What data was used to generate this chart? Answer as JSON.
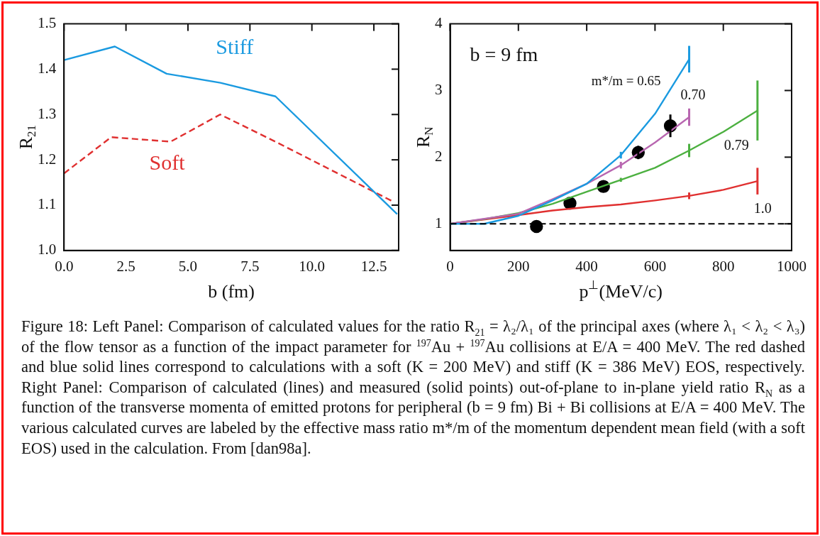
{
  "chart_data": [
    {
      "type": "line",
      "xlabel": "b (fm)",
      "ylabel": "R$_{21}$",
      "xlim": [
        0,
        13.5
      ],
      "ylim": [
        1.0,
        1.5
      ],
      "xticks": [
        {
          "value": 0,
          "label": "0.0"
        },
        {
          "value": 2.5,
          "label": "2.5"
        },
        {
          "value": 5,
          "label": "5.0"
        },
        {
          "value": 7.5,
          "label": "7.5"
        },
        {
          "value": 10,
          "label": "10.0"
        },
        {
          "value": 12.5,
          "label": "12.5"
        }
      ],
      "yticks": [
        {
          "value": 1.0,
          "label": "1.0"
        },
        {
          "value": 1.1,
          "label": "1.1"
        },
        {
          "value": 1.2,
          "label": "1.2"
        },
        {
          "value": 1.3,
          "label": "1.3"
        },
        {
          "value": 1.4,
          "label": "1.4"
        },
        {
          "value": 1.5,
          "label": "1.5"
        }
      ],
      "grid": false,
      "legend": false,
      "series": [
        {
          "name": "Stiff",
          "color": "#1a9ae0",
          "line_style": "solid",
          "x": [
            0,
            2.05,
            4.14,
            6.31,
            8.53,
            13.44
          ],
          "values": [
            1.42,
            1.45,
            1.39,
            1.37,
            1.34,
            1.08
          ]
        },
        {
          "name": "Soft",
          "color": "#e03030",
          "line_style": "dashed",
          "x": [
            0,
            1.9,
            4.3,
            6.3,
            8.53,
            13.2
          ],
          "values": [
            1.17,
            1.25,
            1.24,
            1.3,
            1.24,
            1.11
          ]
        }
      ],
      "annotations": [
        "Figure 18: Left Panel: Comparison of calculated values for the ratio R$_{21}$ = λ₂/λ₁ of the principal axes (where λ₁ < λ₂ < λ₃) of the flow tensor as a function of the impact parameter for $^{197}$Au + $^{197}$Au collisions at E/A = 400 MeV. The red dashed and blue solid lines correspond to calculations with a soft (K = 200 MeV) and stiff (K = 386 MeV) EOS, respectively. Right Panel: Comparison of calculated (lines) and measured (solid points) out-of-plane to in-plane yield ratio R$_{N}$ as a function of the transverse momenta of emitted protons for peripheral (b = 9 fm) Bi + Bi collisions at E/A = 400 MeV. The various calculated curves are labeled by the effective mass ratio m*/m of the momentum dependent mean field (with a soft EOS) used in the calculation. From [dan98a]."
      ]
    },
    {
      "type": "line",
      "xlabel": "p$^{⊥}$(MeV/c)",
      "ylabel": "R$_{N}$",
      "xlim": [
        0,
        1000
      ],
      "ylim": [
        0.6,
        4
      ],
      "xticks": [
        0,
        200,
        400,
        600,
        800,
        1000
      ],
      "yticks": [
        1,
        2,
        3,
        4
      ],
      "grid": false,
      "legend": false,
      "marker": "none",
      "series": [
        {
          "name": "m*/m = 0.65",
          "color": "#1a9ae0",
          "x": [
            0,
            100,
            200,
            300,
            400,
            500,
            600,
            700
          ],
          "values": [
            1,
            1.0,
            1.12,
            1.35,
            1.6,
            2.03,
            2.65,
            3.47
          ],
          "errors": [
            null,
            null,
            null,
            null,
            null,
            0.05,
            null,
            0.2
          ]
        },
        {
          "name": "0.70",
          "color": "#b866b0",
          "x": [
            0,
            200,
            300,
            400,
            500,
            600,
            700
          ],
          "values": [
            1,
            1.15,
            1.37,
            1.6,
            1.88,
            2.22,
            2.6
          ],
          "errors": [
            null,
            null,
            null,
            null,
            0.05,
            null,
            0.13
          ]
        },
        {
          "name": "0.79",
          "color": "#4cb040",
          "x": [
            0,
            100,
            200,
            300,
            400,
            500,
            600,
            700,
            800,
            900
          ],
          "values": [
            1,
            1.07,
            1.16,
            1.3,
            1.48,
            1.66,
            1.84,
            2.1,
            2.38,
            2.7
          ],
          "errors": [
            null,
            null,
            null,
            null,
            null,
            0.03,
            null,
            0.1,
            null,
            0.45
          ]
        },
        {
          "name": "1.0",
          "color": "#e03030",
          "x": [
            0,
            200,
            300,
            400,
            500,
            600,
            700,
            800,
            900
          ],
          "values": [
            1,
            1.13,
            1.2,
            1.25,
            1.29,
            1.35,
            1.42,
            1.51,
            1.64
          ],
          "errors": [
            null,
            null,
            null,
            null,
            null,
            null,
            0.05,
            null,
            0.2
          ]
        },
        {
          "type": "scatter",
          "color": "#000000",
          "marker": "circle",
          "x": [
            253,
            351,
            449,
            551,
            645
          ],
          "values": [
            0.96,
            1.31,
            1.56,
            2.07,
            2.47
          ],
          "errors": [
            null,
            null,
            null,
            0.1,
            0.17
          ]
        }
      ],
      "ref_lines": [
        {
          "axis": "y",
          "value": 1,
          "color": "#000000",
          "line_style": "dashed"
        }
      ],
      "annotations": [
        "b = 9 fm"
      ]
    }
  ]
}
